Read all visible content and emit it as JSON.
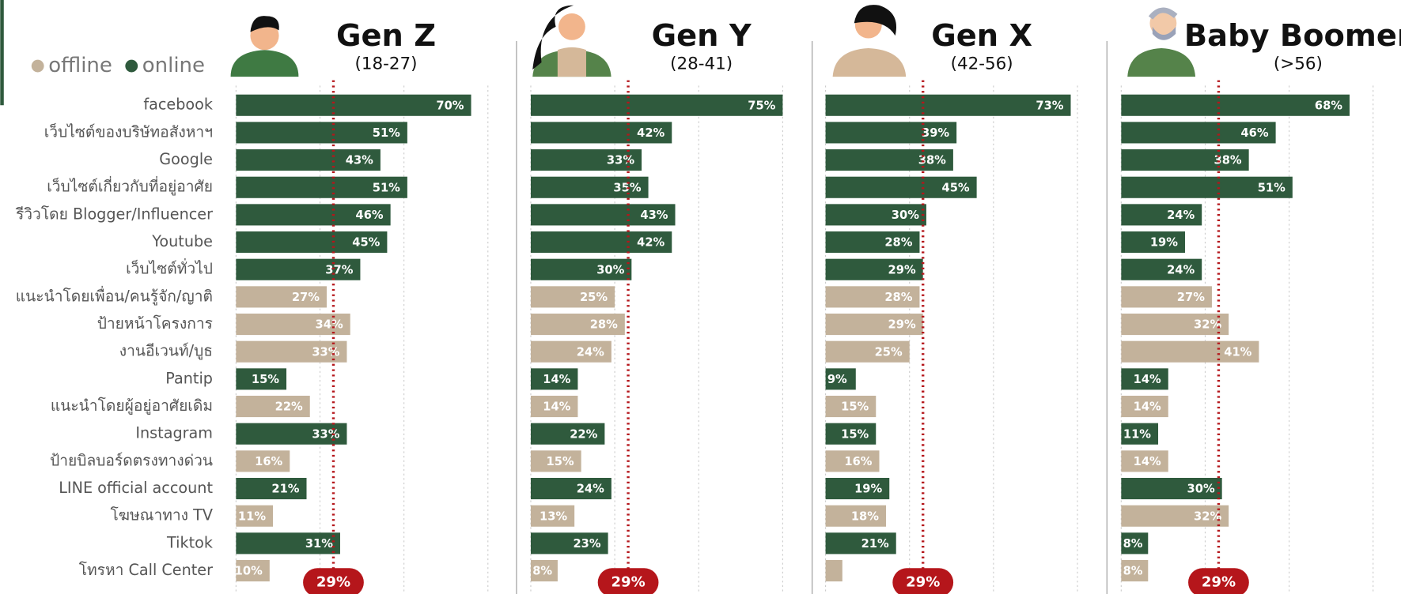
{
  "legend": [
    {
      "name": "offline",
      "color": "#c3b29b"
    },
    {
      "name": "online",
      "color": "#2f5a3d"
    }
  ],
  "categories": [
    "facebook",
    "เว็บไซต์ของบริษัทอสังหาฯ",
    "Google",
    "เว็บไซต์เกี่ยวกับที่อยู่อาศัย",
    "รีวิวโดย Blogger/Influencer",
    "Youtube",
    "เว็บไซต์ทั่วไป",
    "แนะนำโดยเพื่อน/คนรู้จัก/ญาติ",
    "ป้ายหน้าโครงการ",
    "งานอีเวนท์/บูธ",
    "Pantip",
    "แนะนำโดยผู้อยู่อาศัยเดิม",
    "Instagram",
    "ป้ายบิลบอร์ดตรงทางด่วน",
    "LINE official account",
    "โฆษณาทาง TV",
    "Tiktok",
    "โทรหา Call Center"
  ],
  "category_groups": [
    "online",
    "online",
    "online",
    "online",
    "online",
    "online",
    "online",
    "offline",
    "offline",
    "offline",
    "online",
    "offline",
    "online",
    "offline",
    "online",
    "offline",
    "online",
    "offline"
  ],
  "chart_data": [
    {
      "type": "bar",
      "orientation": "horizontal",
      "title": "Gen Z",
      "subtitle": "(18-27)",
      "xlim": [
        0,
        80
      ],
      "xticks": [
        0,
        25,
        50,
        75
      ],
      "values": [
        70,
        51,
        43,
        51,
        46,
        45,
        37,
        27,
        34,
        33,
        15,
        22,
        33,
        16,
        21,
        11,
        31,
        10
      ],
      "value_labels": [
        "70%",
        "51%",
        "43%",
        "51%",
        "46%",
        "45%",
        "37%",
        "27%",
        "34%",
        "33%",
        "15%",
        "22%",
        "33%",
        "16%",
        "21%",
        "11%",
        "31%",
        "10%"
      ],
      "reference": {
        "value": 29,
        "label": "29%",
        "color": "#b5161b"
      }
    },
    {
      "type": "bar",
      "orientation": "horizontal",
      "title": "Gen Y",
      "subtitle": "(28-41)",
      "xlim": [
        0,
        80
      ],
      "xticks": [
        0,
        25,
        50,
        75
      ],
      "values": [
        75,
        42,
        33,
        35,
        43,
        42,
        30,
        25,
        28,
        24,
        14,
        14,
        22,
        15,
        24,
        13,
        23,
        8
      ],
      "value_labels": [
        "75%",
        "42%",
        "33%",
        "35%",
        "43%",
        "42%",
        "30%",
        "25%",
        "28%",
        "24%",
        "14%",
        "14%",
        "22%",
        "15%",
        "24%",
        "13%",
        "23%",
        "8%"
      ],
      "reference": {
        "value": 29,
        "label": "29%",
        "color": "#b5161b"
      }
    },
    {
      "type": "bar",
      "orientation": "horizontal",
      "title": "Gen X",
      "subtitle": "(42-56)",
      "xlim": [
        0,
        80
      ],
      "xticks": [
        0,
        25,
        50,
        75
      ],
      "values": [
        73,
        39,
        38,
        45,
        30,
        28,
        29,
        28,
        29,
        25,
        9,
        15,
        15,
        16,
        19,
        18,
        21,
        5
      ],
      "value_labels": [
        "73%",
        "39%",
        "38%",
        "45%",
        "30%",
        "28%",
        "29%",
        "28%",
        "29%",
        "25%",
        "9%",
        "15%",
        "15%",
        "16%",
        "19%",
        "18%",
        "21%",
        null
      ],
      "reference": {
        "value": 29,
        "label": "29%",
        "color": "#b5161b"
      }
    },
    {
      "type": "bar",
      "orientation": "horizontal",
      "title": "Baby Boomer",
      "subtitle": "(>56)",
      "xlim": [
        0,
        80
      ],
      "xticks": [
        0,
        25,
        50,
        75
      ],
      "values": [
        68,
        46,
        38,
        51,
        24,
        19,
        24,
        27,
        32,
        41,
        14,
        14,
        11,
        14,
        30,
        32,
        8,
        8
      ],
      "value_labels": [
        "68%",
        "46%",
        "38%",
        "51%",
        "24%",
        "19%",
        "24%",
        "27%",
        "32%",
        "41%",
        "14%",
        "14%",
        "11%",
        "14%",
        "30%",
        "32%",
        "8%",
        "8%"
      ],
      "reference": {
        "value": 29,
        "label": "29%",
        "color": "#b5161b"
      }
    }
  ]
}
